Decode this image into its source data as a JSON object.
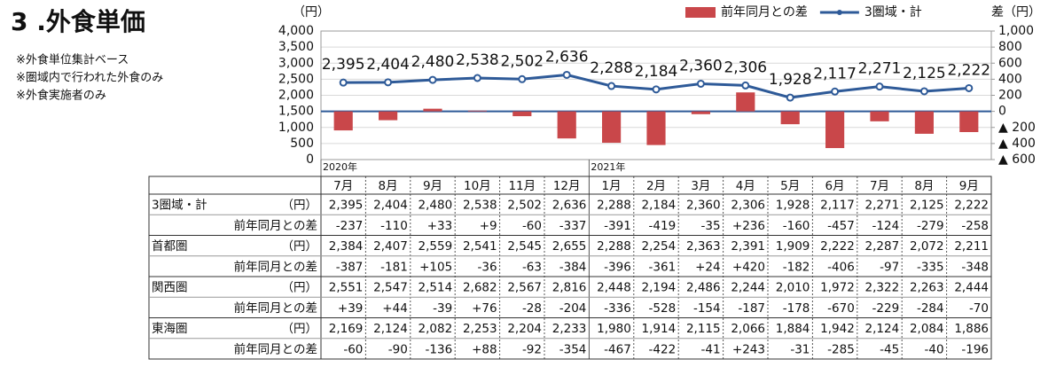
{
  "header": {
    "title": "3 .外食単価",
    "notes": [
      "※外食単位集計ベース",
      "※圏域内で行われた外食のみ",
      "※外食実施者のみ"
    ]
  },
  "chart_data": {
    "type": "bar-line",
    "y_label": "（円）",
    "y2_label": "差（円）",
    "categories": [
      "7月",
      "8月",
      "9月",
      "10月",
      "11月",
      "12月",
      "1月",
      "2月",
      "3月",
      "4月",
      "5月",
      "6月",
      "7月",
      "8月",
      "9月"
    ],
    "year_labels": [
      "2020年",
      null,
      null,
      null,
      null,
      null,
      "2021年",
      null,
      null,
      null,
      null,
      null,
      null,
      null,
      null
    ],
    "series": [
      {
        "name": "前年同月との差",
        "type": "bar",
        "axis": "y2",
        "color": "#c9474a",
        "values": [
          -237,
          -110,
          33,
          9,
          -60,
          -337,
          -391,
          -419,
          -35,
          236,
          -160,
          -457,
          -124,
          -279,
          -258
        ]
      },
      {
        "name": "3圏域・計",
        "type": "line",
        "axis": "y",
        "color": "#2e5a98",
        "values": [
          2395,
          2404,
          2480,
          2538,
          2502,
          2636,
          2288,
          2184,
          2360,
          2306,
          1928,
          2117,
          2271,
          2125,
          2222
        ],
        "value_labels": [
          "2,395",
          "2,404",
          "2,480",
          "2,538",
          "2,502",
          "2,636",
          "2,288",
          "2,184",
          "2,360",
          "2,306",
          "1,928",
          "2,117",
          "2,271",
          "2,125",
          "2,222"
        ]
      }
    ],
    "ylim": [
      0,
      4000
    ],
    "yticks": [
      0,
      {
        "value": 500,
        "label": "500"
      },
      {
        "value": 1000,
        "label": "1,000"
      },
      {
        "value": 1500,
        "label": "1,500"
      },
      {
        "value": 2000,
        "label": "2,000"
      },
      {
        "value": 2500,
        "label": "2,500"
      },
      {
        "value": 3000,
        "label": "3,000"
      },
      {
        "value": 3500,
        "label": "3,500"
      },
      {
        "value": 4000,
        "label": "4,000"
      }
    ],
    "y2lim": [
      -600,
      1000
    ],
    "y2ticks": [
      {
        "value": -600,
        "label": "▲ 600"
      },
      {
        "value": -400,
        "label": "▲ 400"
      },
      {
        "value": -200,
        "label": "▲ 200"
      },
      0,
      200,
      400,
      600,
      800,
      {
        "value": 1000,
        "label": "1,000"
      }
    ],
    "grid": true,
    "legend": "top-right"
  },
  "table": {
    "groups": [
      {
        "name": "3圏域・計",
        "unit": "（円）",
        "values": [
          "2,395",
          "2,404",
          "2,480",
          "2,538",
          "2,502",
          "2,636",
          "2,288",
          "2,184",
          "2,360",
          "2,306",
          "1,928",
          "2,117",
          "2,271",
          "2,125",
          "2,222"
        ],
        "diff_label": "前年同月との差",
        "diffs": [
          "-237",
          "-110",
          "+33",
          "+9",
          "-60",
          "-337",
          "-391",
          "-419",
          "-35",
          "+236",
          "-160",
          "-457",
          "-124",
          "-279",
          "-258"
        ]
      },
      {
        "name": "首都圏",
        "unit": "（円）",
        "values": [
          "2,384",
          "2,407",
          "2,559",
          "2,541",
          "2,545",
          "2,655",
          "2,288",
          "2,254",
          "2,363",
          "2,391",
          "1,909",
          "2,222",
          "2,287",
          "2,072",
          "2,211"
        ],
        "diff_label": "前年同月との差",
        "diffs": [
          "-387",
          "-181",
          "+105",
          "-36",
          "-63",
          "-384",
          "-396",
          "-361",
          "+24",
          "+420",
          "-182",
          "-406",
          "-97",
          "-335",
          "-348"
        ]
      },
      {
        "name": "関西圏",
        "unit": "（円）",
        "values": [
          "2,551",
          "2,547",
          "2,514",
          "2,682",
          "2,567",
          "2,816",
          "2,448",
          "2,194",
          "2,486",
          "2,244",
          "2,010",
          "1,972",
          "2,322",
          "2,263",
          "2,444"
        ],
        "diff_label": "前年同月との差",
        "diffs": [
          "+39",
          "+44",
          "-39",
          "+76",
          "-28",
          "-204",
          "-336",
          "-528",
          "-154",
          "-187",
          "-178",
          "-670",
          "-229",
          "-284",
          "-70"
        ]
      },
      {
        "name": "東海圏",
        "unit": "（円）",
        "values": [
          "2,169",
          "2,124",
          "2,082",
          "2,253",
          "2,204",
          "2,233",
          "1,980",
          "1,914",
          "2,115",
          "2,066",
          "1,884",
          "1,942",
          "2,124",
          "2,084",
          "1,886"
        ],
        "diff_label": "前年同月との差",
        "diffs": [
          "-60",
          "-90",
          "-136",
          "+88",
          "-92",
          "-354",
          "-467",
          "-422",
          "-41",
          "+243",
          "-31",
          "-285",
          "-45",
          "-40",
          "-196"
        ]
      }
    ]
  }
}
